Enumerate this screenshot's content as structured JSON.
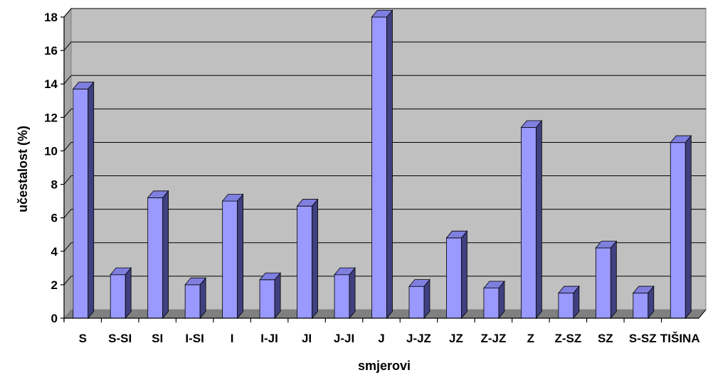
{
  "chart_data": {
    "type": "bar",
    "title": "",
    "xlabel": "smjerovi",
    "ylabel": "učestalost (%)",
    "ylim": [
      0,
      18
    ],
    "yticks": [
      0,
      2,
      4,
      6,
      8,
      10,
      12,
      14,
      16,
      18
    ],
    "categories": [
      "S",
      "S-SI",
      "SI",
      "I-SI",
      "I",
      "I-JI",
      "JI",
      "J-JI",
      "J",
      "J-JZ",
      "JZ",
      "Z-JZ",
      "Z",
      "Z-SZ",
      "SZ",
      "S-SZ",
      "TIŠINA"
    ],
    "values": [
      13.7,
      2.6,
      7.2,
      2.0,
      7.0,
      2.3,
      6.7,
      2.6,
      18.0,
      1.9,
      4.8,
      1.8,
      11.4,
      1.5,
      4.2,
      1.5,
      10.5
    ],
    "grid": true,
    "legend": "none",
    "colors": {
      "bar_front": "#9999ff",
      "bar_side": "#404080",
      "bar_top": "#7f7fe0",
      "wall": "#c0c0c0",
      "floor": "#808080",
      "grid": "#000000"
    }
  }
}
